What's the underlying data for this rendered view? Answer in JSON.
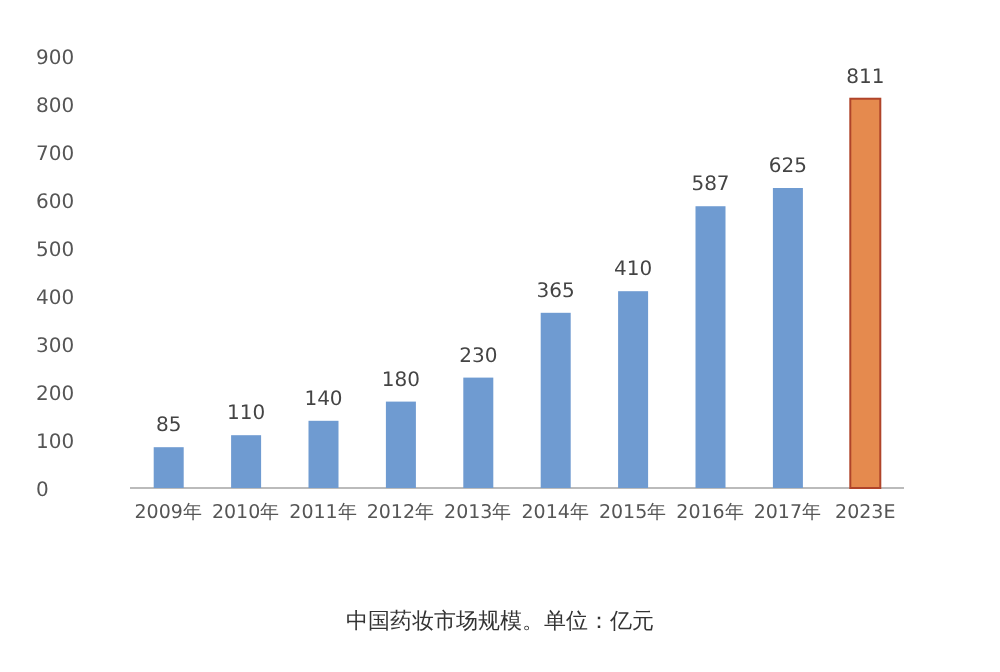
{
  "chart_data": {
    "type": "bar",
    "categories": [
      "2009年",
      "2010年",
      "2011年",
      "2012年",
      "2013年",
      "2014年",
      "2015年",
      "2016年",
      "2017年",
      "2023E"
    ],
    "values": [
      85,
      110,
      140,
      180,
      230,
      365,
      410,
      587,
      625,
      811
    ],
    "colors": [
      "#6f9bd1",
      "#6f9bd1",
      "#6f9bd1",
      "#6f9bd1",
      "#6f9bd1",
      "#6f9bd1",
      "#6f9bd1",
      "#6f9bd1",
      "#6f9bd1",
      "#e58a4e"
    ],
    "ylim": [
      0,
      900
    ],
    "yticks": [
      0,
      100,
      200,
      300,
      400,
      500,
      600,
      700,
      800,
      900
    ],
    "data_labels": true,
    "annotations": [
      "中国药妆市场规模。单位：亿元"
    ]
  }
}
